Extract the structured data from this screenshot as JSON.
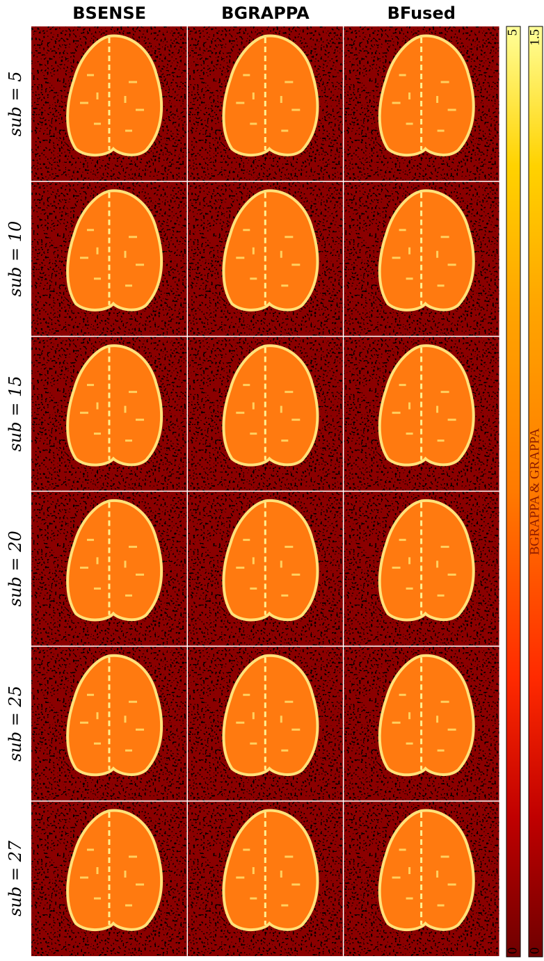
{
  "columns": [
    "BSENSE",
    "BGRAPPA",
    "BFused"
  ],
  "rows": [
    "sub = 5",
    "sub = 10",
    "sub = 15",
    "sub = 20",
    "sub = 25",
    "sub = 27"
  ],
  "colorbars": [
    {
      "min": 0,
      "max": 5
    },
    {
      "min": 0,
      "max": 1.5,
      "label": "BGRAPPA & GRAPPA"
    }
  ]
}
